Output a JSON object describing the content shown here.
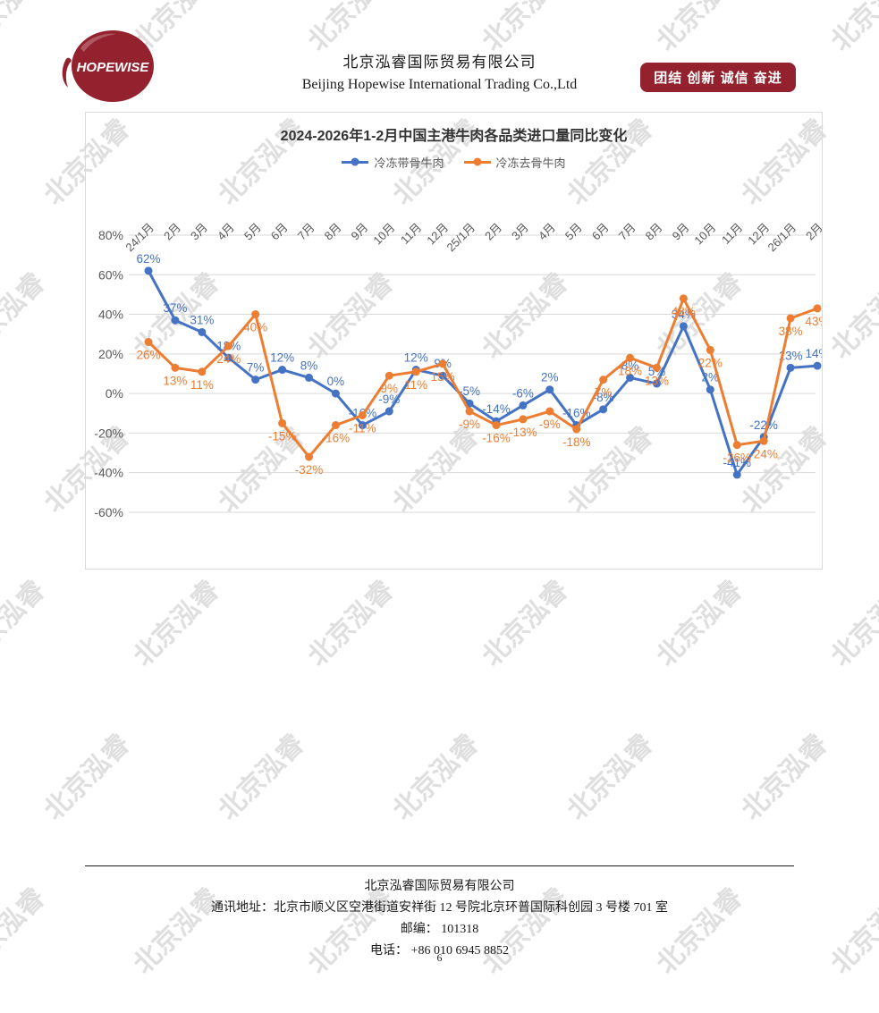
{
  "header": {
    "logo_text": "HOPEWISE",
    "company_cn": "北京泓睿国际贸易有限公司",
    "company_en": "Beijing Hopewise International Trading Co.,Ltd",
    "badge": "团结 创新 诚信 奋进",
    "brand_color": "#94212E"
  },
  "watermark": {
    "text": "北京泓睿"
  },
  "chart_data": {
    "type": "line",
    "title": "2024-2026年1-2月中国主港牛肉各品类进口量同比变化",
    "categories": [
      "24/1月",
      "2月",
      "3月",
      "4月",
      "5月",
      "6月",
      "7月",
      "8月",
      "9月",
      "10月",
      "11月",
      "12月",
      "25/1月",
      "2月",
      "3月",
      "4月",
      "5月",
      "6月",
      "7月",
      "8月",
      "9月",
      "10月",
      "11月",
      "12月",
      "26/1月",
      "2月"
    ],
    "series": [
      {
        "name": "冷冻带骨牛肉",
        "color": "#4472C4",
        "values": [
          62,
          37,
          31,
          18,
          7,
          12,
          8,
          0,
          -16,
          -9,
          12,
          9,
          -5,
          -14,
          -6,
          2,
          -16,
          -8,
          8,
          5,
          34,
          2,
          -41,
          -22,
          13,
          14
        ]
      },
      {
        "name": "冷冻去骨牛肉",
        "color": "#ED7D31",
        "values": [
          26,
          13,
          11,
          24,
          40,
          -15,
          -32,
          -16,
          -11,
          9,
          11,
          15,
          -9,
          -16,
          -13,
          -9,
          -18,
          7,
          18,
          13,
          48,
          22,
          -26,
          -24,
          38,
          43
        ]
      }
    ],
    "ylabel": "",
    "xlabel": "",
    "ylim": [
      -60,
      80
    ],
    "ytick_step": 20,
    "ytick_suffix": "%",
    "data_label_suffix": "%",
    "grid": true,
    "legend_position": "top",
    "axis_text_color": "#595959",
    "grid_color": "#d9d9d9"
  },
  "footer": {
    "company": "北京泓睿国际贸易有限公司",
    "address": "通讯地址：北京市顺义区空港街道安祥街 12 号院北京环普国际科创园 3 号楼 701 室",
    "postcode": "邮编： 101318",
    "phone": "电话： +86 010 6945 8852",
    "page_number": "6"
  }
}
